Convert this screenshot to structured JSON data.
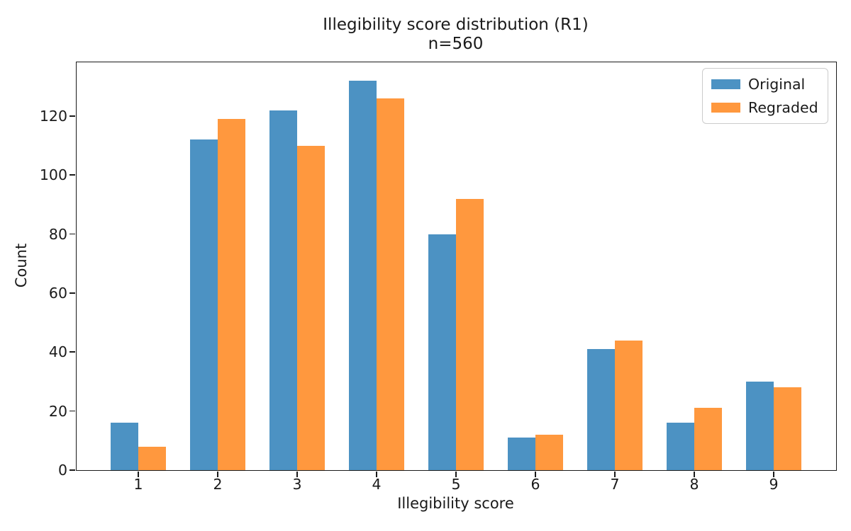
{
  "chart_data": {
    "type": "bar",
    "title": "Illegibility score distribution (R1)",
    "subtitle": "n=560",
    "xlabel": "Illegibility score",
    "ylabel": "Count",
    "categories": [
      "1",
      "2",
      "3",
      "4",
      "5",
      "6",
      "7",
      "8",
      "9"
    ],
    "series": [
      {
        "name": "Original",
        "color": "#4C92C3",
        "values": [
          16,
          112,
          122,
          132,
          80,
          11,
          41,
          16,
          30
        ]
      },
      {
        "name": "Regraded",
        "color": "#FF983E",
        "values": [
          8,
          119,
          110,
          126,
          92,
          12,
          44,
          21,
          28
        ]
      }
    ],
    "yticks": [
      0,
      20,
      40,
      60,
      80,
      100,
      120
    ],
    "ylim": [
      0,
      138.2
    ],
    "grid": false,
    "legend_position": "upper right",
    "background_color": "#ffffff",
    "text_color": "#1a1a1a"
  }
}
